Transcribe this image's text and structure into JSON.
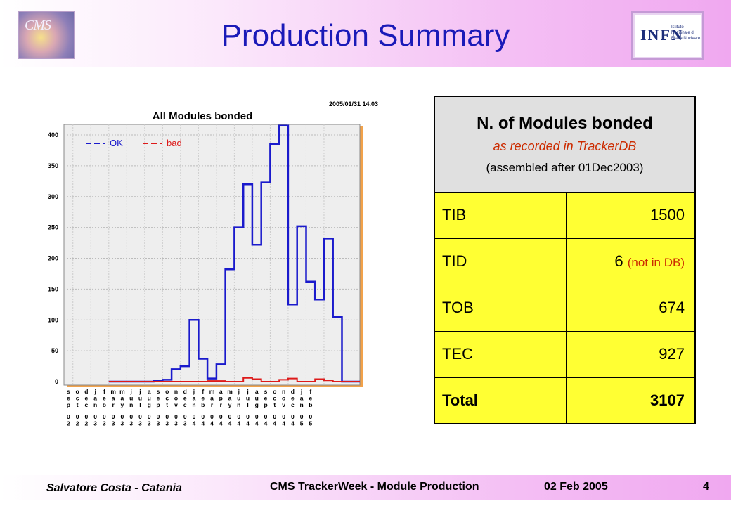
{
  "slide": {
    "title": "Production Summary",
    "logos": {
      "left": "CMS",
      "right": "INFN",
      "right_sub": "Istituto Nazionale di Fisica Nucleare"
    }
  },
  "chart_data": {
    "type": "line",
    "style": "step",
    "title": "All Modules bonded",
    "timestamp": "2005/01/31   14.03",
    "ylim": [
      0,
      420
    ],
    "yticks": [
      0,
      50,
      100,
      150,
      200,
      250,
      300,
      350,
      400
    ],
    "grid": true,
    "legend_position": "top-left",
    "categories": [
      {
        "month": "sep",
        "year": "02"
      },
      {
        "month": "oct",
        "year": "02"
      },
      {
        "month": "dec",
        "year": "02"
      },
      {
        "month": "jan",
        "year": "03"
      },
      {
        "month": "feb",
        "year": "03"
      },
      {
        "month": "mar",
        "year": "03"
      },
      {
        "month": "may",
        "year": "03"
      },
      {
        "month": "jun",
        "year": "03"
      },
      {
        "month": "jul",
        "year": "03"
      },
      {
        "month": "aug",
        "year": "03"
      },
      {
        "month": "sep",
        "year": "03"
      },
      {
        "month": "oct",
        "year": "03"
      },
      {
        "month": "nov",
        "year": "03"
      },
      {
        "month": "dec",
        "year": "03"
      },
      {
        "month": "jan",
        "year": "04"
      },
      {
        "month": "feb",
        "year": "04"
      },
      {
        "month": "mar",
        "year": "04"
      },
      {
        "month": "apr",
        "year": "04"
      },
      {
        "month": "may",
        "year": "04"
      },
      {
        "month": "jun",
        "year": "04"
      },
      {
        "month": "jul",
        "year": "04"
      },
      {
        "month": "aug",
        "year": "04"
      },
      {
        "month": "sep",
        "year": "04"
      },
      {
        "month": "oct",
        "year": "04"
      },
      {
        "month": "nov",
        "year": "04"
      },
      {
        "month": "dec",
        "year": "04"
      },
      {
        "month": "jan",
        "year": "05"
      },
      {
        "month": "feb",
        "year": "05"
      }
    ],
    "bins_start": 5,
    "series": [
      {
        "name": "OK",
        "color": "#1a1acc",
        "values": [
          0,
          0,
          0,
          0,
          0,
          2,
          3,
          20,
          25,
          100,
          37,
          5,
          28,
          182,
          250,
          320,
          222,
          323,
          385,
          415,
          125,
          252,
          162,
          133,
          232,
          105,
          0,
          0
        ]
      },
      {
        "name": "bad",
        "color": "#dd1a1a",
        "values": [
          0,
          0,
          0,
          0,
          0,
          0,
          0,
          0,
          0,
          0,
          0,
          1,
          1,
          0,
          0,
          6,
          4,
          0,
          0,
          3,
          5,
          0,
          0,
          4,
          2,
          0,
          0,
          0
        ]
      }
    ]
  },
  "table": {
    "header_line1": "N. of Modules bonded",
    "header_line2": "as recorded in TrackerDB",
    "header_line3": "(assembled after 01Dec2003)",
    "rows": [
      {
        "label": "TIB",
        "value": "1500",
        "note": ""
      },
      {
        "label": "TID",
        "value": "6",
        "note": "(not in DB)"
      },
      {
        "label": "TOB",
        "value": "674",
        "note": ""
      },
      {
        "label": "TEC",
        "value": "927",
        "note": ""
      }
    ],
    "total": {
      "label": "Total",
      "value": "3107"
    }
  },
  "footer": {
    "author": "Salvatore Costa - Catania",
    "event": "CMS TrackerWeek - Module Production",
    "date": "02 Feb 2005",
    "page": "4"
  }
}
